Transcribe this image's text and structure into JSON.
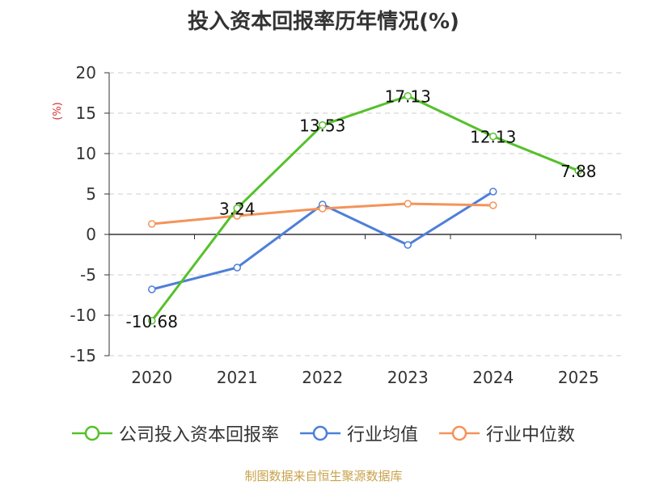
{
  "chart_data": {
    "type": "line",
    "title": "投入资本回报率历年情况(%)",
    "ylabel": "(%)",
    "categories": [
      "2020",
      "2021",
      "2022",
      "2023",
      "2024",
      "2025"
    ],
    "ylim": [
      -15,
      20
    ],
    "yticks": [
      20,
      15,
      10,
      5,
      0,
      -5,
      -10,
      -15
    ],
    "grid": true,
    "legend_position": "bottom",
    "series": [
      {
        "name": "公司投入资本回报率",
        "color": "#55c12b",
        "values": [
          -10.68,
          3.24,
          13.53,
          17.13,
          12.13,
          7.88
        ],
        "labels": [
          "-10.68",
          "3.24",
          "13.53",
          "17.13",
          "12.13",
          "7.88"
        ]
      },
      {
        "name": "行业均值",
        "color": "#4e7fd9",
        "values": [
          -6.8,
          -4.1,
          3.7,
          -1.3,
          5.3,
          null
        ]
      },
      {
        "name": "行业中位数",
        "color": "#f4935a",
        "values": [
          1.3,
          2.3,
          3.2,
          3.8,
          3.6,
          null
        ]
      }
    ]
  },
  "footer": "制图数据来自恒生聚源数据库"
}
